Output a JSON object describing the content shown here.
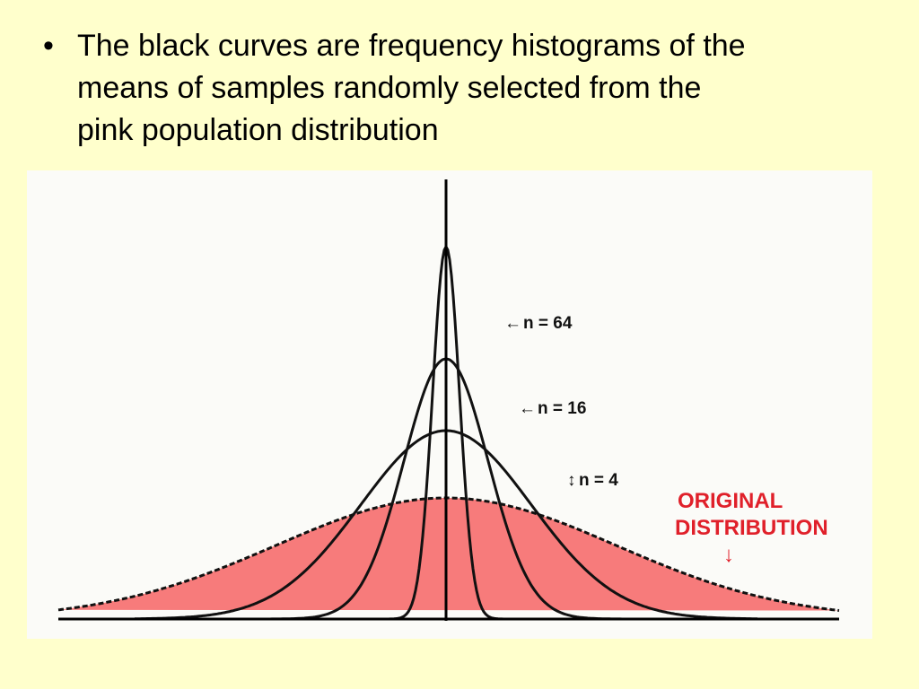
{
  "bullet": {
    "lines": [
      "The black curves are frequency histograms of the",
      "means of samples randomly selected from the",
      "pink population distribution"
    ]
  },
  "figure": {
    "labels": {
      "n64": "n = 64",
      "n16": "n = 16",
      "n4": "n = 4",
      "original": [
        "ORIGINAL",
        "DISTRIBUTION"
      ]
    }
  }
}
